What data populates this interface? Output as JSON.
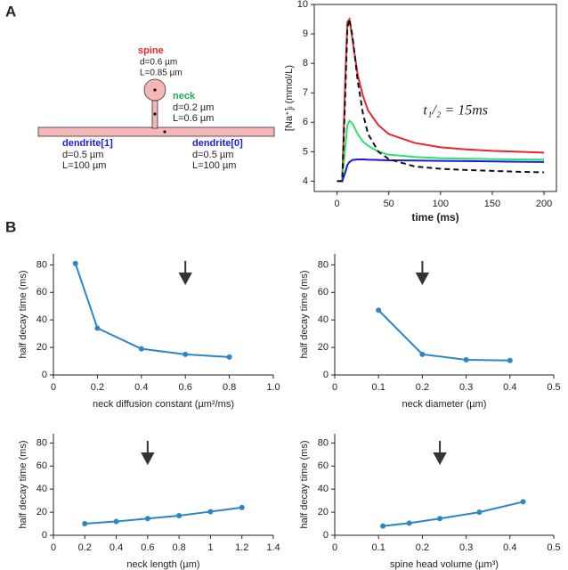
{
  "panel_labels": [
    "A",
    "B"
  ],
  "diagram": {
    "spine": {
      "label": "spine",
      "d": "d=0.6 µm",
      "L": "L=0.85 µm"
    },
    "neck": {
      "label": "neck",
      "d": "d=0.2 µm",
      "L": "L=0.6 µm"
    },
    "dendrite1": {
      "label": "dendrite[1]",
      "d": "d=0.5 µm",
      "L": "L=100 µm"
    },
    "dendrite0": {
      "label": "dendrite[0]",
      "d": "d=0.5 µm",
      "L": "L=100 µm"
    }
  },
  "chart_data": [
    {
      "type": "line",
      "x_label": "time (ms)",
      "y_label": "[Na⁺]ᵢ (mmol/L)",
      "annotation": "t₁/₂ = 15ms",
      "frame": true,
      "x": [
        0,
        5,
        8,
        10,
        12,
        15,
        20,
        25,
        30,
        40,
        50,
        75,
        100,
        125,
        150,
        175,
        200
      ],
      "series": [
        {
          "color": "#e8262c",
          "values": [
            4,
            4,
            7.5,
            9.4,
            9.5,
            8.8,
            7.6,
            6.9,
            6.4,
            5.9,
            5.6,
            5.3,
            5.15,
            5.08,
            5.03,
            5.0,
            4.97
          ]
        },
        {
          "color": "#2ee06a",
          "values": [
            4,
            4,
            5.2,
            5.9,
            6.05,
            5.95,
            5.6,
            5.35,
            5.2,
            5.0,
            4.9,
            4.82,
            4.78,
            4.76,
            4.75,
            4.74,
            4.73
          ]
        },
        {
          "color": "#1a1ae0",
          "values": [
            4,
            4,
            4.3,
            4.55,
            4.65,
            4.72,
            4.74,
            4.74,
            4.73,
            4.72,
            4.71,
            4.7,
            4.69,
            4.68,
            4.67,
            4.66,
            4.65
          ]
        },
        {
          "color": "#111111",
          "dashed": true,
          "values": [
            4,
            4,
            7,
            9.2,
            9.5,
            8.9,
            7.4,
            6.3,
            5.6,
            5.0,
            4.75,
            4.5,
            4.42,
            4.38,
            4.35,
            4.32,
            4.3
          ]
        }
      ],
      "xlim": [
        -22,
        212
      ],
      "xticks": [
        0,
        50,
        100,
        150,
        200
      ],
      "ylim": [
        3.65,
        10
      ],
      "yticks": [
        4,
        5,
        6,
        7,
        8,
        9,
        10
      ]
    },
    {
      "type": "line",
      "x_label": "neck diffusion constant (µm²/ms)",
      "y_label": "half decay time (ms)",
      "color": "#2a86c4",
      "markers": true,
      "x": [
        0.1,
        0.2,
        0.4,
        0.6,
        0.8
      ],
      "values": [
        81,
        34,
        19,
        15,
        13
      ],
      "arrow_x": 0.6,
      "xlim": [
        0,
        1
      ],
      "xticks": [
        0,
        0.2,
        0.4,
        0.6,
        0.8,
        {
          "value": 1,
          "label": "1.0"
        }
      ],
      "ylim": [
        0,
        88
      ],
      "yticks": [
        0,
        20,
        40,
        60,
        80
      ]
    },
    {
      "type": "line",
      "x_label": "neck diameter (µm)",
      "y_label": "half decay time (ms)",
      "color": "#2a86c4",
      "markers": true,
      "x": [
        0.1,
        0.2,
        0.3,
        0.4
      ],
      "values": [
        47,
        15,
        11,
        10.5
      ],
      "arrow_x": 0.2,
      "xlim": [
        0,
        0.5
      ],
      "xticks": [
        0,
        0.1,
        0.2,
        0.3,
        0.4,
        0.5
      ],
      "ylim": [
        0,
        88
      ],
      "yticks": [
        0,
        20,
        40,
        60,
        80
      ]
    },
    {
      "type": "line",
      "x_label": "neck length (µm)",
      "y_label": "half decay time (ms)",
      "color": "#2a86c4",
      "markers": true,
      "x": [
        0.2,
        0.4,
        0.6,
        0.8,
        1,
        1.2
      ],
      "values": [
        10,
        12,
        14.5,
        17,
        20.5,
        24
      ],
      "arrow_x": 0.6,
      "xlim": [
        0,
        1.4
      ],
      "xticks": [
        0,
        0.2,
        0.4,
        0.6,
        0.8,
        1,
        1.2,
        1.4
      ],
      "ylim": [
        0,
        88
      ],
      "yticks": [
        0,
        20,
        40,
        60,
        80
      ]
    },
    {
      "type": "line",
      "x_label": "spine head volume (µm³)",
      "y_label": "half decay time (ms)",
      "color": "#2a86c4",
      "markers": true,
      "x": [
        0.11,
        0.17,
        0.24,
        0.33,
        0.43
      ],
      "values": [
        8,
        10.5,
        14.5,
        20,
        29
      ],
      "arrow_x": 0.24,
      "xlim": [
        0,
        0.5
      ],
      "xticks": [
        0,
        0.1,
        0.2,
        0.3,
        0.4,
        0.5
      ],
      "ylim": [
        0,
        88
      ],
      "yticks": [
        0,
        20,
        40,
        60,
        80
      ]
    }
  ]
}
